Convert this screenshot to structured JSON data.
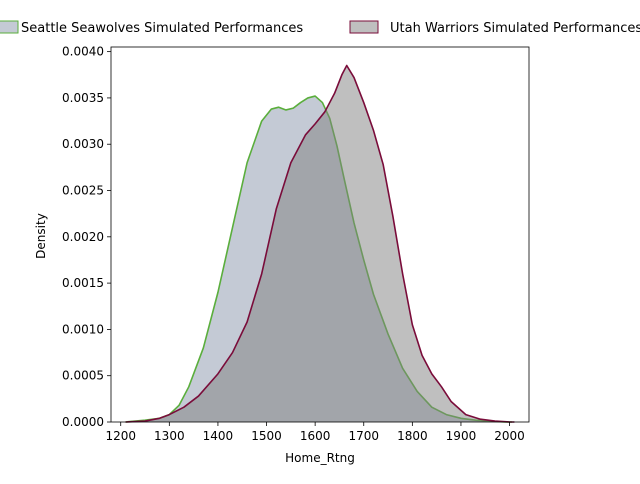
{
  "chart_data": {
    "type": "area",
    "xlabel": "Home_Rtng",
    "ylabel": "Density",
    "xlim": [
      1180,
      2040
    ],
    "ylim": [
      0,
      0.00405
    ],
    "xticks": [
      1200,
      1300,
      1400,
      1500,
      1600,
      1700,
      1800,
      1900,
      2000
    ],
    "yticks": [
      "0.0000",
      "0.0005",
      "0.0010",
      "0.0015",
      "0.0020",
      "0.0025",
      "0.0030",
      "0.0035",
      "0.0040"
    ],
    "grid": false,
    "legend_position": "top",
    "series": [
      {
        "name": "Seattle Seawolves Simulated Performances",
        "fill": "#8a96ab",
        "line": "#5aae3c",
        "x": [
          1210,
          1250,
          1280,
          1300,
          1320,
          1340,
          1370,
          1400,
          1430,
          1460,
          1490,
          1510,
          1525,
          1540,
          1555,
          1570,
          1585,
          1600,
          1615,
          1630,
          1645,
          1660,
          1680,
          1700,
          1720,
          1750,
          1780,
          1810,
          1840,
          1870,
          1900,
          1930,
          1960,
          1990,
          2005
        ],
        "y": [
          0.0,
          2e-05,
          4e-05,
          8e-05,
          0.00018,
          0.00038,
          0.0008,
          0.0014,
          0.0021,
          0.0028,
          0.00325,
          0.00338,
          0.0034,
          0.00337,
          0.00339,
          0.00345,
          0.0035,
          0.00352,
          0.00345,
          0.00328,
          0.00298,
          0.00262,
          0.00215,
          0.00175,
          0.00138,
          0.00095,
          0.00058,
          0.00033,
          0.00016,
          8e-05,
          4e-05,
          2e-05,
          1e-05,
          0.0,
          0.0
        ]
      },
      {
        "name": "Utah Warriors Simulated Performances",
        "fill": "#808080",
        "line": "#7a0c3a",
        "x": [
          1210,
          1250,
          1280,
          1300,
          1330,
          1360,
          1400,
          1430,
          1460,
          1490,
          1520,
          1550,
          1580,
          1600,
          1620,
          1640,
          1655,
          1665,
          1680,
          1700,
          1720,
          1740,
          1760,
          1780,
          1800,
          1820,
          1840,
          1860,
          1880,
          1910,
          1940,
          1970,
          2000,
          2010
        ],
        "y": [
          0.0,
          1e-05,
          4e-05,
          8e-05,
          0.00016,
          0.00028,
          0.00052,
          0.00075,
          0.00108,
          0.0016,
          0.0023,
          0.0028,
          0.0031,
          0.00322,
          0.00335,
          0.00355,
          0.00375,
          0.00385,
          0.00372,
          0.00345,
          0.00315,
          0.00278,
          0.00222,
          0.0016,
          0.00105,
          0.00072,
          0.00052,
          0.00038,
          0.00022,
          8e-05,
          3e-05,
          1e-05,
          0.0,
          0.0
        ]
      }
    ]
  }
}
